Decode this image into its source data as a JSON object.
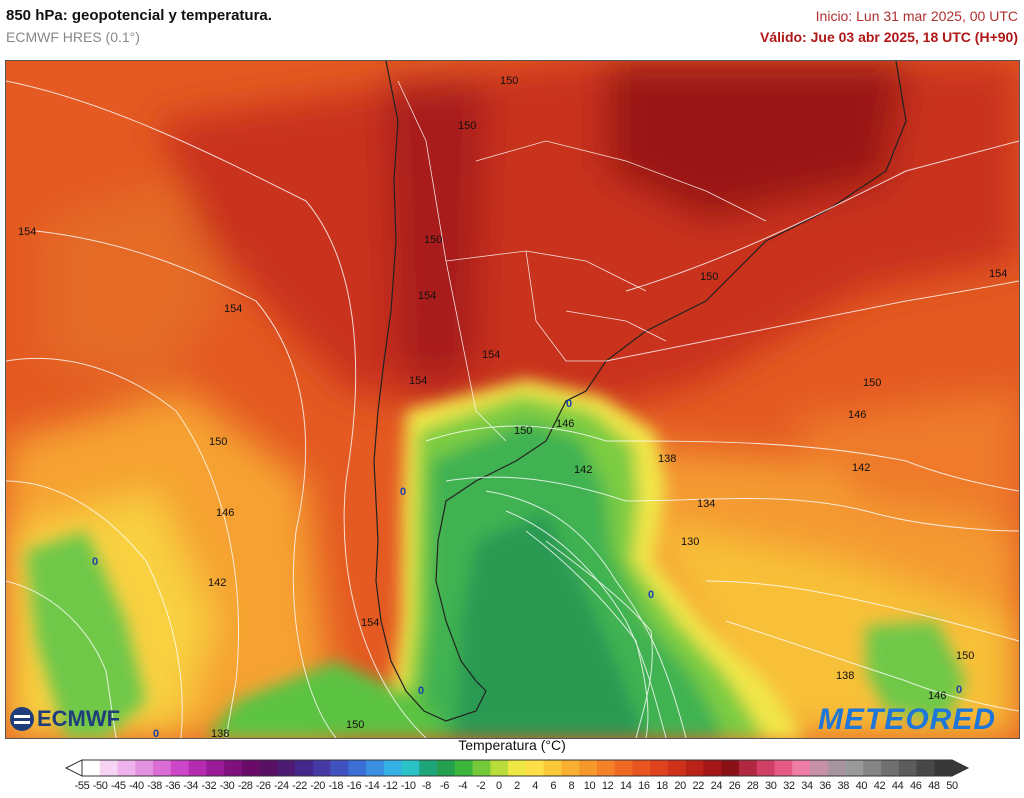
{
  "header": {
    "title": "850 hPa: geopotencial y temperatura.",
    "model": "ECMWF HRES (0.1°)",
    "start": "Inicio: Lun 31 mar 2025, 00 UTC",
    "valid": "Válido: Jue 03 abr 2025, 18 UTC (H+90)"
  },
  "map": {
    "contour_labels": [
      {
        "text": "150"
      },
      {
        "text": "150"
      },
      {
        "text": "154"
      },
      {
        "text": "154"
      },
      {
        "text": "154"
      },
      {
        "text": "150"
      },
      {
        "text": "154"
      },
      {
        "text": "154"
      },
      {
        "text": "150"
      },
      {
        "text": "146"
      },
      {
        "text": "142"
      },
      {
        "text": "150"
      },
      {
        "text": "146"
      },
      {
        "text": "142"
      },
      {
        "text": "138"
      },
      {
        "text": "134"
      },
      {
        "text": "130"
      },
      {
        "text": "150"
      },
      {
        "text": "146"
      },
      {
        "text": "142"
      },
      {
        "text": "154"
      },
      {
        "text": "150"
      },
      {
        "text": "150"
      },
      {
        "text": "138"
      },
      {
        "text": "146"
      },
      {
        "text": "138"
      },
      {
        "text": "154"
      },
      {
        "text": "150"
      }
    ],
    "zero_labels": [
      "0",
      "0",
      "0",
      "0",
      "0",
      "0",
      "0"
    ]
  },
  "legend": {
    "title": "Temperatura (°C)",
    "labels": [
      "-55",
      "-50",
      "-45",
      "-40",
      "-38",
      "-36",
      "-34",
      "-32",
      "-30",
      "-28",
      "-26",
      "-24",
      "-22",
      "-20",
      "-18",
      "-16",
      "-14",
      "-12",
      "-10",
      "-8",
      "-6",
      "-4",
      "-2",
      "0",
      "2",
      "4",
      "6",
      "8",
      "10",
      "12",
      "14",
      "16",
      "18",
      "20",
      "22",
      "24",
      "26",
      "28",
      "30",
      "32",
      "34",
      "36",
      "38",
      "40",
      "42",
      "44",
      "46",
      "48",
      "50"
    ],
    "colors": [
      "#ffffff",
      "#f6d4f4",
      "#eeb3ec",
      "#e591e2",
      "#da6cd6",
      "#cc48c8",
      "#b52cb1",
      "#9a1c98",
      "#7f107e",
      "#6a0a6b",
      "#571064",
      "#4c1a73",
      "#452789",
      "#4539a3",
      "#3f52c0",
      "#3a70d6",
      "#3a8fe3",
      "#35b0e6",
      "#2ac2c6",
      "#1ea67a",
      "#25a04e",
      "#3cb63d",
      "#74c93a",
      "#b9dc3a",
      "#eee842",
      "#fde047",
      "#fbc93a",
      "#f8b032",
      "#f6982c",
      "#f28127",
      "#ee6a22",
      "#e8551f",
      "#df421c",
      "#cf311a",
      "#bb2319",
      "#a31717",
      "#8a1116",
      "#b0283f",
      "#d03f64",
      "#e45b86",
      "#ee7ea6",
      "#c790a8",
      "#a894a0",
      "#9a9a9a",
      "#858585",
      "#707070",
      "#5c5c5c",
      "#484848",
      "#383838"
    ]
  },
  "logos": {
    "left": "ECMWF",
    "right": "METEORED"
  }
}
